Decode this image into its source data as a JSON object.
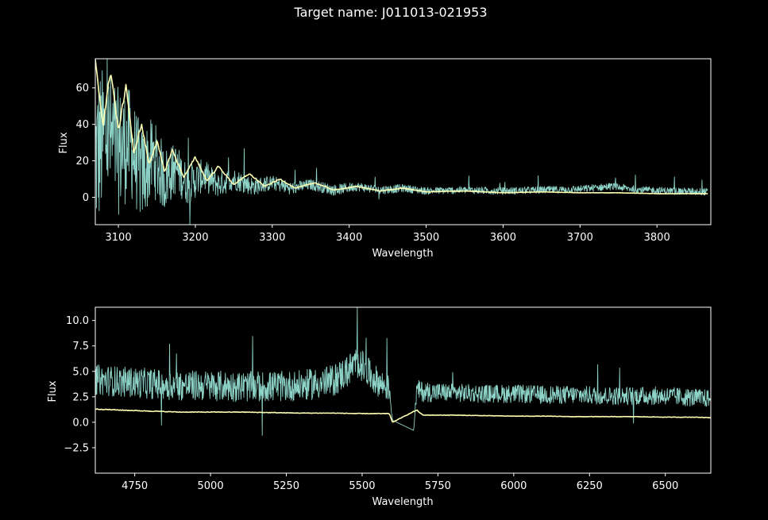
{
  "figure": {
    "title": "Target name: J011013-021953",
    "background": "#000000",
    "foreground": "#ffffff"
  },
  "chart_data": [
    {
      "type": "line",
      "title": "",
      "xlabel": "Wavelength",
      "ylabel": "Flux",
      "xlim": [
        3070,
        3870
      ],
      "ylim": [
        -15,
        76
      ],
      "xticks": [
        3100,
        3200,
        3300,
        3400,
        3500,
        3600,
        3700,
        3800
      ],
      "yticks": [
        0,
        20,
        40,
        60
      ],
      "grid": false,
      "legend": "none",
      "series": [
        {
          "color": "#8dd3c7",
          "role": "observed flux (noisy)",
          "x": [
            3070,
            3085,
            3100,
            3115,
            3130,
            3145,
            3160,
            3175,
            3190,
            3210,
            3230,
            3250,
            3275,
            3300,
            3325,
            3350,
            3380,
            3410,
            3440,
            3470,
            3500,
            3550,
            3600,
            3650,
            3700,
            3740,
            3780,
            3820,
            3866
          ],
          "y": [
            22,
            35,
            25,
            30,
            12,
            22,
            10,
            16,
            7,
            12,
            7,
            10,
            6,
            8,
            5,
            7,
            4,
            6,
            4,
            5,
            3.5,
            4,
            3.5,
            4,
            4.5,
            6,
            4,
            3.5,
            3
          ],
          "spread": [
            45,
            40,
            35,
            30,
            26,
            22,
            18,
            14,
            11,
            9,
            7,
            6,
            5,
            4,
            3.5,
            3,
            3,
            2.5,
            2.5,
            2.2,
            2,
            2,
            2,
            2,
            2,
            2,
            2,
            2,
            2
          ]
        },
        {
          "color": "#ffffb3",
          "role": "model flux",
          "x": [
            3070,
            3080,
            3090,
            3100,
            3110,
            3120,
            3130,
            3140,
            3150,
            3160,
            3170,
            3185,
            3200,
            3215,
            3230,
            3250,
            3270,
            3290,
            3310,
            3330,
            3355,
            3380,
            3410,
            3440,
            3470,
            3500,
            3550,
            3600,
            3650,
            3700,
            3750,
            3800,
            3866
          ],
          "y": [
            74,
            40,
            70,
            36,
            62,
            24,
            40,
            18,
            31,
            14,
            26,
            11,
            22,
            9,
            17,
            7,
            13,
            6,
            10,
            5,
            8,
            4,
            6,
            3.5,
            5,
            3,
            3.5,
            2.5,
            3,
            2.5,
            2.5,
            2,
            2
          ]
        }
      ]
    },
    {
      "type": "line",
      "title": "",
      "xlabel": "Wavelength",
      "ylabel": "Flux",
      "xlim": [
        4620,
        6650
      ],
      "ylim": [
        -5,
        11.3
      ],
      "xticks": [
        4750,
        5000,
        5250,
        5500,
        5750,
        6000,
        6250,
        6500
      ],
      "ytick_labels": [
        "10.0",
        "7.5",
        "5.0",
        "2.5",
        "0.0",
        "−2.5"
      ],
      "yticks": [
        10,
        7.5,
        5,
        2.5,
        0,
        -2.5
      ],
      "grid": false,
      "legend": "none",
      "series": [
        {
          "color": "#8dd3c7",
          "role": "observed flux (noisy)",
          "x": [
            4620,
            4700,
            4800,
            4900,
            5000,
            5100,
            5200,
            5300,
            5400,
            5450,
            5480,
            5500,
            5530,
            5560,
            5590,
            5600,
            5670,
            5680,
            5700,
            5800,
            5900,
            6000,
            6100,
            6200,
            6300,
            6400,
            6500,
            6600,
            6650
          ],
          "y": [
            4.2,
            4,
            3.8,
            3.6,
            3.6,
            3.5,
            3.5,
            3.6,
            4,
            5,
            5.8,
            5.5,
            4.5,
            3.8,
            3.3,
            0.2,
            -0.8,
            3.2,
            3,
            2.9,
            2.8,
            2.8,
            2.7,
            2.7,
            2.6,
            2.6,
            2.6,
            2.4,
            2.3
          ],
          "spread": [
            1.5,
            1.5,
            1.5,
            1.5,
            1.5,
            1.5,
            1.5,
            1.5,
            1.6,
            1.6,
            1.6,
            1.6,
            1.5,
            1.4,
            1.3,
            0,
            0,
            1,
            1,
            0.9,
            0.9,
            0.9,
            0.9,
            0.9,
            0.9,
            0.9,
            0.9,
            0.9,
            0.9
          ]
        },
        {
          "color": "#ffffb3",
          "role": "model flux",
          "x": [
            4620,
            4700,
            4800,
            4900,
            5000,
            5100,
            5200,
            5300,
            5400,
            5500,
            5590,
            5600,
            5680,
            5700,
            5800,
            5900,
            6000,
            6100,
            6200,
            6300,
            6400,
            6500,
            6600,
            6650
          ],
          "y": [
            1.3,
            1.2,
            1.1,
            1.0,
            1.0,
            1.0,
            0.95,
            0.9,
            0.9,
            0.85,
            0.85,
            0.0,
            1.2,
            0.7,
            0.7,
            0.65,
            0.6,
            0.6,
            0.55,
            0.55,
            0.55,
            0.5,
            0.5,
            0.45
          ]
        }
      ]
    }
  ]
}
